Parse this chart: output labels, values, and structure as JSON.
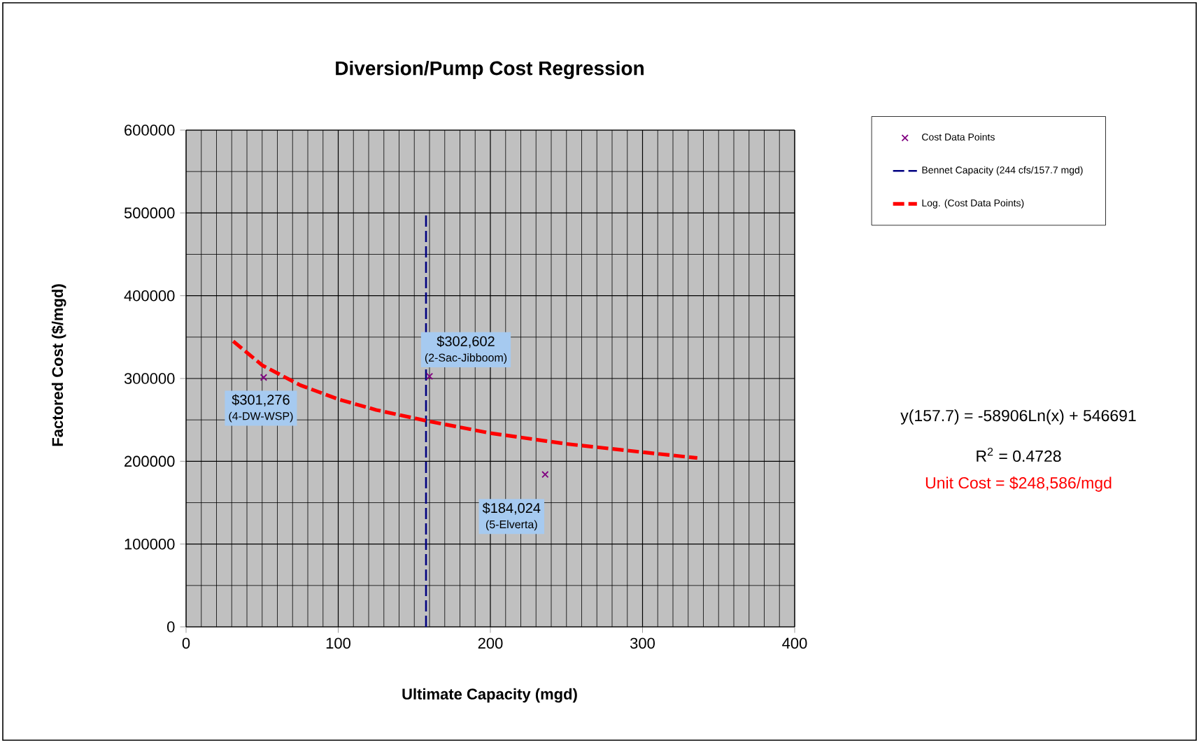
{
  "chart_data": {
    "type": "scatter",
    "title": "Diversion/Pump Cost Regression",
    "xlabel": "Ultimate Capacity (mgd)",
    "ylabel": "Factored Cost ($/mgd)",
    "xlim": [
      0,
      400
    ],
    "xticks": [
      0,
      100,
      200,
      300,
      400
    ],
    "ylim": [
      0,
      600000
    ],
    "yticks": [
      0,
      100000,
      200000,
      300000,
      400000,
      500000,
      600000
    ],
    "grid": true,
    "legend": "right",
    "series": [
      {
        "name": "Cost Data Points",
        "color": "#800080",
        "marker": "cross",
        "x": [
          51,
          160,
          236
        ],
        "values": [
          301276,
          302602,
          184024
        ],
        "value_labels": [
          "$301,276",
          "$302,602",
          "$184,024"
        ]
      },
      {
        "name": "Bennet Capacity (244 cfs/157.7 mgd)",
        "type": "line",
        "color": "#000080",
        "line_style": "dashed",
        "x": [
          157.7,
          157.7
        ],
        "values": [
          0,
          500000
        ]
      },
      {
        "name": "Log. (Cost Data Points)",
        "type": "line",
        "color": "#ff0000",
        "line_style": "dashed",
        "x": [
          31,
          50,
          75,
          100,
          125,
          157.7,
          200,
          250,
          300,
          336
        ],
        "values": [
          345000,
          316000,
          292000,
          275000,
          262000,
          249000,
          234000,
          221000,
          211000,
          204000
        ]
      }
    ],
    "annotations": [
      "(4-DW-WSP)",
      "(2-Sac-Jibboom)",
      "(5-Elverta)",
      "y(157.7) = -58906Ln(x) + 546691",
      "R$^{2}$ = 0.4728",
      "Unit Cost = $248,586/mgd"
    ]
  }
}
